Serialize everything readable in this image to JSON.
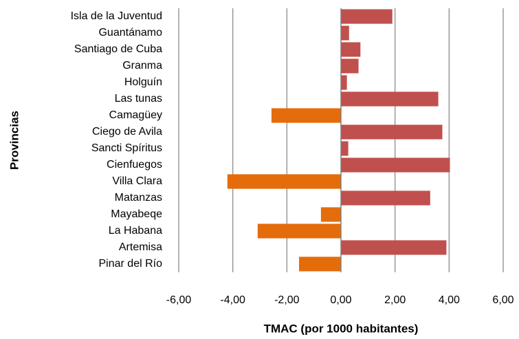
{
  "chart_data": {
    "type": "barh",
    "xlabel": "TMAC (por 1000 habitantes)",
    "ylabel": "Provincias",
    "categories": [
      "Isla de la Juventud",
      "Guantánamo",
      "Santiago de Cuba",
      "Granma",
      "Holguín",
      "Las tunas",
      "Camagüey",
      "Ciego de Avila",
      "Sancti Spíritus",
      "Cienfuegos",
      "Villa Clara",
      "Matanzas",
      "Mayabeqe",
      "La Habana",
      "Artemisa",
      "Pinar del Río"
    ],
    "values": [
      1.9,
      0.3,
      0.72,
      0.65,
      0.22,
      3.6,
      -2.57,
      3.75,
      0.27,
      4.03,
      -4.2,
      3.3,
      -0.74,
      -3.08,
      3.9,
      -1.55
    ],
    "colors": [
      "#c0504d",
      "#c0504d",
      "#c0504d",
      "#c0504d",
      "#c0504d",
      "#c0504d",
      "#e46c0a",
      "#c0504d",
      "#c0504d",
      "#c0504d",
      "#e46c0a",
      "#c0504d",
      "#e46c0a",
      "#e46c0a",
      "#c0504d",
      "#e46c0a"
    ],
    "xlim": [
      -6,
      6
    ],
    "xticks": [
      {
        "value": -6,
        "label": "-6,00"
      },
      {
        "value": -4,
        "label": "-4,00"
      },
      {
        "value": -2,
        "label": "-2,00"
      },
      {
        "value": 0,
        "label": "0,00"
      },
      {
        "value": 2,
        "label": "2,00"
      },
      {
        "value": 4,
        "label": "4,00"
      },
      {
        "value": 6,
        "label": "6,00"
      }
    ],
    "grid": true
  }
}
